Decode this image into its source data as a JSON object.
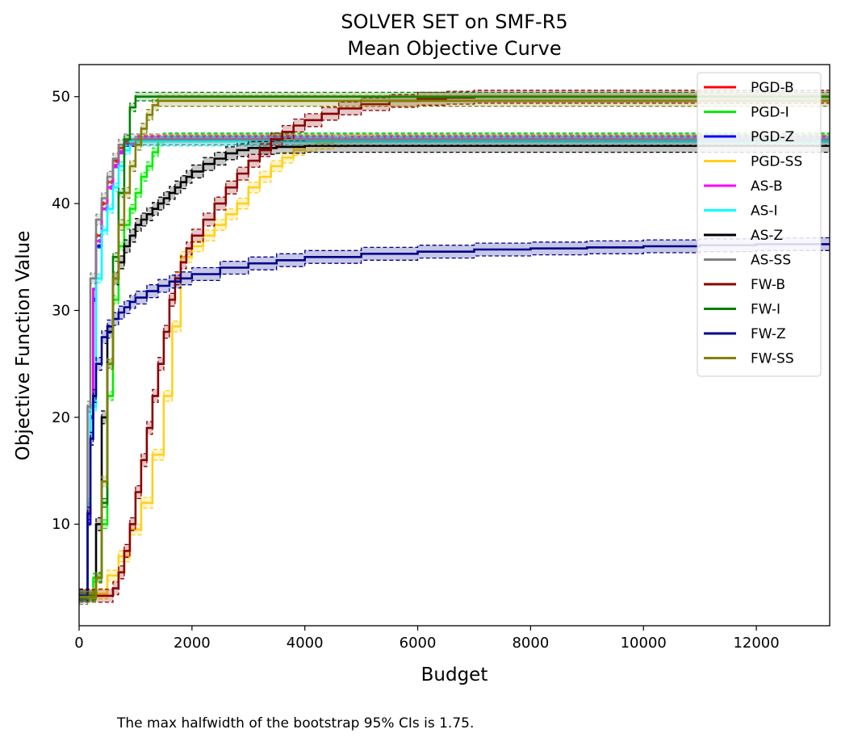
{
  "chart_data": {
    "type": "line",
    "title": "SOLVER SET on SMF-R5",
    "subtitle": "Mean Objective Curve",
    "xlabel": "Budget",
    "ylabel": "Objective Function Value",
    "xlim": [
      0,
      13300
    ],
    "ylim": [
      0.5,
      53
    ],
    "xticks": [
      0,
      2000,
      4000,
      6000,
      8000,
      10000,
      12000
    ],
    "yticks": [
      10,
      20,
      30,
      40,
      50
    ],
    "xtick_labels": [
      "0",
      "2000",
      "4000",
      "6000",
      "8000",
      "10000",
      "12000"
    ],
    "ytick_labels": [
      "10",
      "20",
      "30",
      "40",
      "50"
    ],
    "grid": false,
    "legend_position": "top-right",
    "note": "The max halfwidth of the bootstrap 95% CIs is 1.75.",
    "series": [
      {
        "name": "PGD-B",
        "color": "#ff0000",
        "ci": 0.15,
        "x": [
          0,
          100,
          150,
          200,
          250,
          300,
          400,
          500,
          600,
          700,
          800,
          1000,
          13300
        ],
        "y": [
          3.3,
          3.3,
          10,
          20,
          32,
          37,
          40,
          42,
          44,
          45.2,
          45.8,
          46.2,
          46.3
        ]
      },
      {
        "name": "PGD-I",
        "color": "#00ee00",
        "ci": 0.4,
        "x": [
          0,
          150,
          250,
          400,
          500,
          600,
          700,
          800,
          900,
          1000,
          1100,
          1200,
          1300,
          1400,
          1500,
          13300
        ],
        "y": [
          3.2,
          3.2,
          5,
          10,
          22,
          31,
          36,
          38,
          39.5,
          41,
          42.5,
          43.5,
          44.8,
          45.8,
          46.2,
          46.3
        ]
      },
      {
        "name": "PGD-Z",
        "color": "#0000ff",
        "ci": 0.15,
        "x": [
          0,
          100,
          150,
          200,
          250,
          300,
          400,
          500,
          600,
          700,
          800,
          1000,
          13300
        ],
        "y": [
          3.3,
          3.3,
          10,
          20,
          31,
          36,
          39.5,
          41.5,
          43.5,
          44.8,
          45.5,
          46,
          46.1
        ]
      },
      {
        "name": "PGD-SS",
        "color": "#ffd11a",
        "ci": 0.5,
        "x": [
          0,
          300,
          500,
          700,
          900,
          1100,
          1300,
          1500,
          1650,
          1800,
          2000,
          2200,
          2400,
          2600,
          2800,
          3000,
          3200,
          3400,
          3600,
          3800,
          4000,
          4200,
          4500,
          4800,
          5200
        ],
        "y": [
          3.5,
          3.5,
          5.2,
          7,
          9.5,
          12,
          16.5,
          22,
          28.5,
          35,
          36,
          37,
          38,
          39,
          40,
          41.5,
          42.5,
          43.5,
          44.3,
          45,
          45.4,
          45.6,
          45.8,
          45.9,
          46
        ]
      },
      {
        "name": "AS-B",
        "color": "#ff00ff",
        "ci": 0.15,
        "x": [
          0,
          100,
          150,
          200,
          250,
          300,
          400,
          500,
          600,
          700,
          800,
          1000,
          13300
        ],
        "y": [
          3.3,
          3.3,
          11,
          21,
          32,
          36.5,
          39.5,
          41.5,
          43.5,
          44.8,
          45.6,
          46.1,
          46.2
        ]
      },
      {
        "name": "AS-I",
        "color": "#00ffff",
        "ci": 0.4,
        "x": [
          0,
          100,
          150,
          200,
          300,
          400,
          500,
          600,
          700,
          800,
          900,
          13300
        ],
        "y": [
          3.2,
          3.2,
          12,
          21,
          33,
          37.5,
          39.5,
          41.5,
          43.5,
          45,
          45.8,
          46
        ]
      },
      {
        "name": "AS-Z",
        "color": "#000000",
        "ci": 0.6,
        "x": [
          0,
          200,
          300,
          400,
          500,
          600,
          700,
          800,
          900,
          1000,
          1100,
          1200,
          1300,
          1400,
          1500,
          1600,
          1700,
          1800,
          1900,
          2000,
          2200,
          2400,
          2600,
          2800,
          3000,
          3500,
          4000,
          13300
        ],
        "y": [
          3.3,
          3.3,
          10,
          20,
          28,
          33,
          34.5,
          36,
          37,
          38,
          38.5,
          39,
          39.5,
          40,
          40.5,
          41,
          41.5,
          42,
          42.5,
          43,
          43.7,
          44.2,
          44.7,
          45,
          45.2,
          45.3,
          45.4,
          45.5
        ]
      },
      {
        "name": "AS-SS",
        "color": "#808080",
        "ci": 0.5,
        "x": [
          0,
          100,
          150,
          200,
          300,
          400,
          500,
          600,
          700,
          800,
          13300
        ],
        "y": [
          3,
          3,
          21,
          33,
          38.5,
          40.5,
          42.5,
          44.2,
          45.5,
          46,
          46.2
        ]
      },
      {
        "name": "FW-B",
        "color": "#8b0000",
        "ci": 0.6,
        "x": [
          0,
          400,
          600,
          700,
          800,
          900,
          1000,
          1100,
          1200,
          1300,
          1400,
          1500,
          1600,
          1700,
          1800,
          1900,
          2000,
          2200,
          2400,
          2600,
          2800,
          3000,
          3200,
          3400,
          3600,
          3800,
          4000,
          4300,
          4600,
          5000,
          5500,
          6000,
          6500,
          7000,
          13300
        ],
        "y": [
          3.3,
          3.3,
          4,
          5.5,
          7.5,
          10,
          13,
          16,
          19,
          22,
          25,
          28,
          31,
          33,
          34.5,
          35.8,
          37,
          38.5,
          40,
          41.5,
          42.8,
          44,
          45,
          46,
          46.7,
          47.3,
          47.8,
          48.4,
          48.9,
          49.3,
          49.6,
          49.8,
          49.9,
          50,
          50
        ]
      },
      {
        "name": "FW-I",
        "color": "#008000",
        "ci": 0.4,
        "x": [
          0,
          200,
          300,
          400,
          500,
          600,
          700,
          800,
          900,
          1000,
          13300
        ],
        "y": [
          3.3,
          3.3,
          5,
          12,
          25,
          35,
          41,
          46,
          49,
          50,
          50
        ]
      },
      {
        "name": "FW-Z",
        "color": "#00008b",
        "ci": 0.6,
        "x": [
          0,
          100,
          150,
          200,
          250,
          300,
          400,
          500,
          600,
          700,
          800,
          900,
          1000,
          1200,
          1400,
          1600,
          1800,
          2000,
          2500,
          3000,
          3500,
          4000,
          5000,
          6000,
          7000,
          8000,
          9000,
          10000,
          11000,
          12000,
          13300
        ],
        "y": [
          3.3,
          3.3,
          11,
          18,
          22,
          25,
          27.5,
          28.5,
          29.2,
          29.8,
          30.3,
          30.8,
          31.2,
          31.8,
          32.3,
          32.7,
          33,
          33.4,
          34,
          34.4,
          34.7,
          35,
          35.3,
          35.5,
          35.7,
          35.8,
          35.9,
          36,
          36.1,
          36.2,
          36.3
        ]
      },
      {
        "name": "FW-SS",
        "color": "#808000",
        "ci": 0.5,
        "x": [
          0,
          200,
          300,
          400,
          500,
          600,
          700,
          800,
          900,
          1000,
          1100,
          1200,
          1300,
          1400,
          13300
        ],
        "y": [
          3.2,
          3.2,
          5,
          14,
          25,
          33,
          38,
          41,
          43.5,
          45.5,
          47,
          48.3,
          49.2,
          49.6,
          49.8
        ]
      }
    ]
  }
}
